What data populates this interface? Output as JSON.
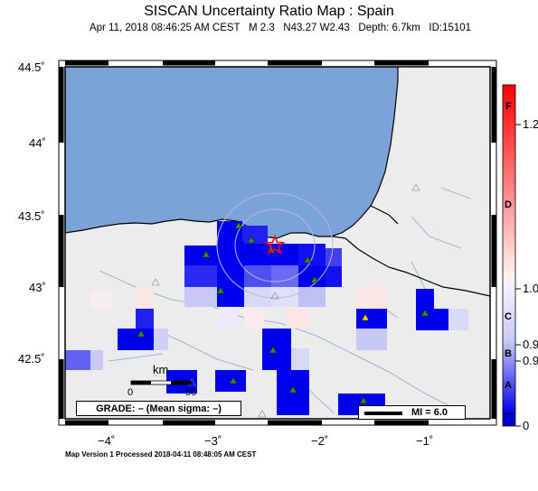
{
  "title": "SISCAN Uncertainty Ratio Map : Spain",
  "subtitle": "Apr 11, 2018 08:46:25 AM CEST   M 2.3   N43.27 W2.43   Depth: 6.7km   ID:15101",
  "footer": "Map Version 1 Processed 2018-04-11 08:48:05 AM CEST",
  "grade": "GRADE: – (Mean sigma: –)",
  "mi_label": "MI = 6.0",
  "scale": {
    "unit": "km",
    "start": "0",
    "end": "50"
  },
  "axes": {
    "y_ticks": [
      "44.5˚",
      "44˚",
      "43.5˚",
      "43˚",
      "42.5˚"
    ],
    "x_ticks": [
      "−4˚",
      "−3˚",
      "−2˚",
      "−1˚"
    ]
  },
  "colorbar": {
    "letters": [
      "F",
      "D",
      "C",
      "B",
      "A"
    ],
    "values": [
      "1.2",
      "1.0",
      "0.9",
      "0.9",
      "0"
    ]
  },
  "colors": {
    "sea": "#7ba3d8",
    "land": "#ececec",
    "cell_high": "#0000ee",
    "cell_scale_top": "#ff0000",
    "epicenter": "#ff0000",
    "station": "#2e8b2e"
  }
}
